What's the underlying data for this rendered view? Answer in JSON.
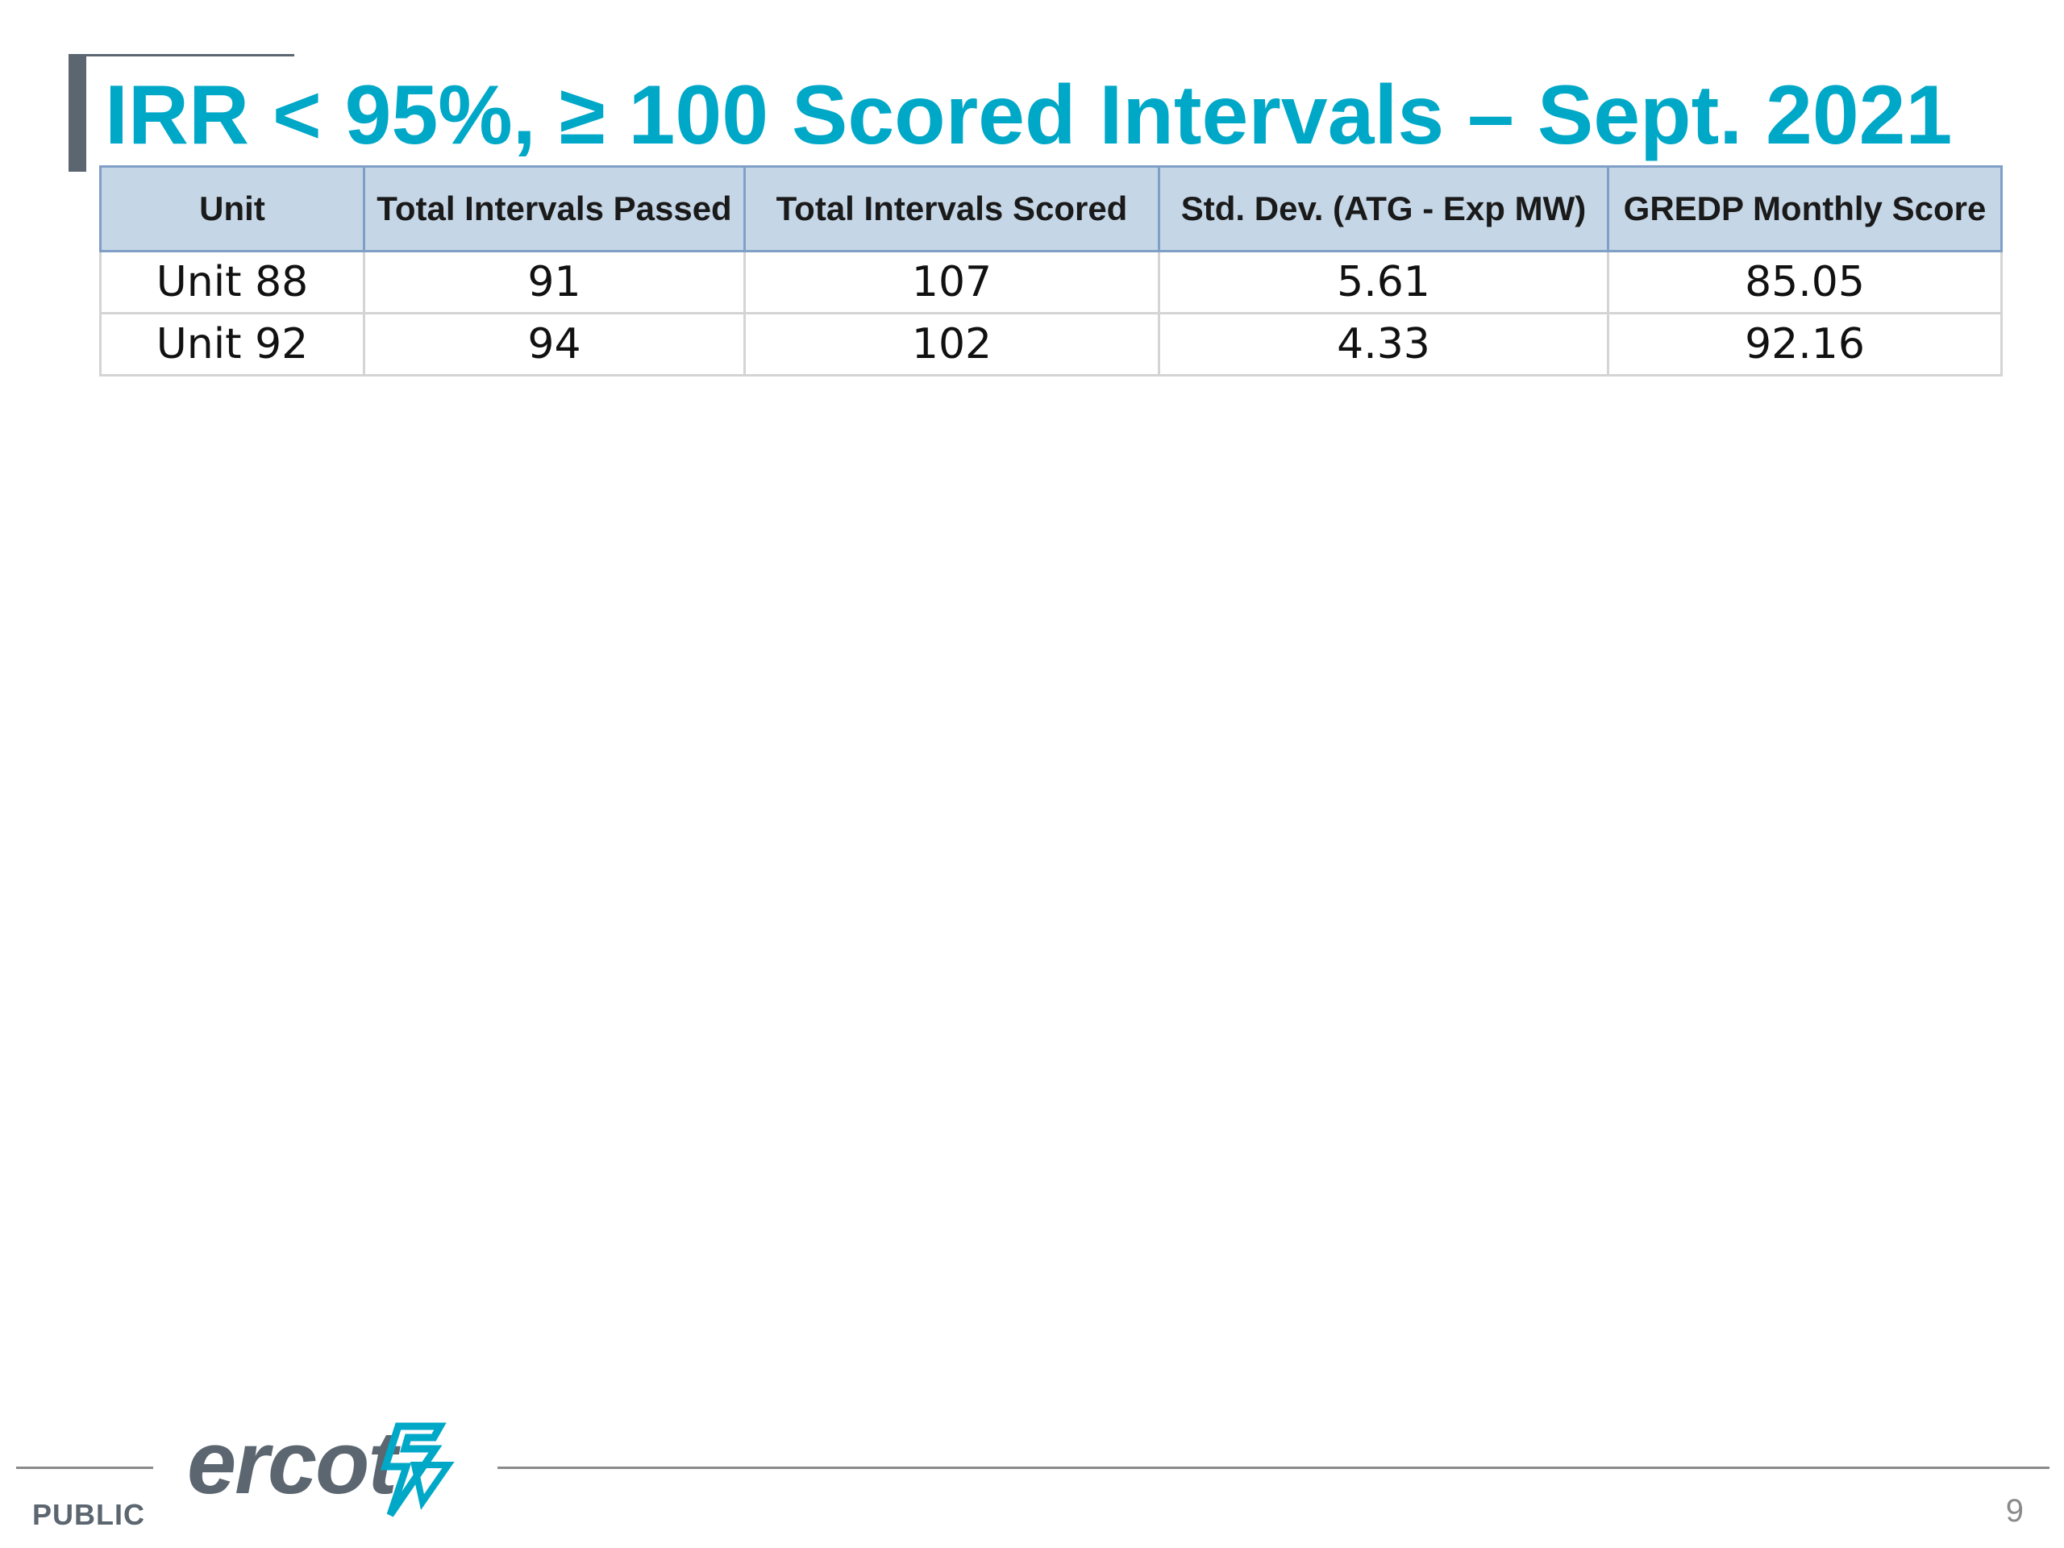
{
  "slide": {
    "title": "IRR < 95%, ≥ 100 Scored Intervals – Sept. 2021",
    "table": {
      "headers": [
        "Unit",
        "Total Intervals Passed",
        "Total Intervals Scored",
        "Std. Dev. (ATG - Exp MW)",
        "GREDP Monthly Score"
      ],
      "rows": [
        [
          "Unit 88",
          "91",
          "107",
          "5.61",
          "85.05"
        ],
        [
          "Unit 92",
          "94",
          "102",
          "4.33",
          "92.16"
        ]
      ]
    }
  },
  "footer": {
    "classification": "PUBLIC",
    "logo_text": "ercot",
    "page_number": "9"
  },
  "colors": {
    "title": "#00a8c8",
    "header_fill": "#c5d6e6",
    "header_border": "#7f9fc6",
    "accent_gray": "#5b6670",
    "logo_mark": "#00a8c8"
  }
}
